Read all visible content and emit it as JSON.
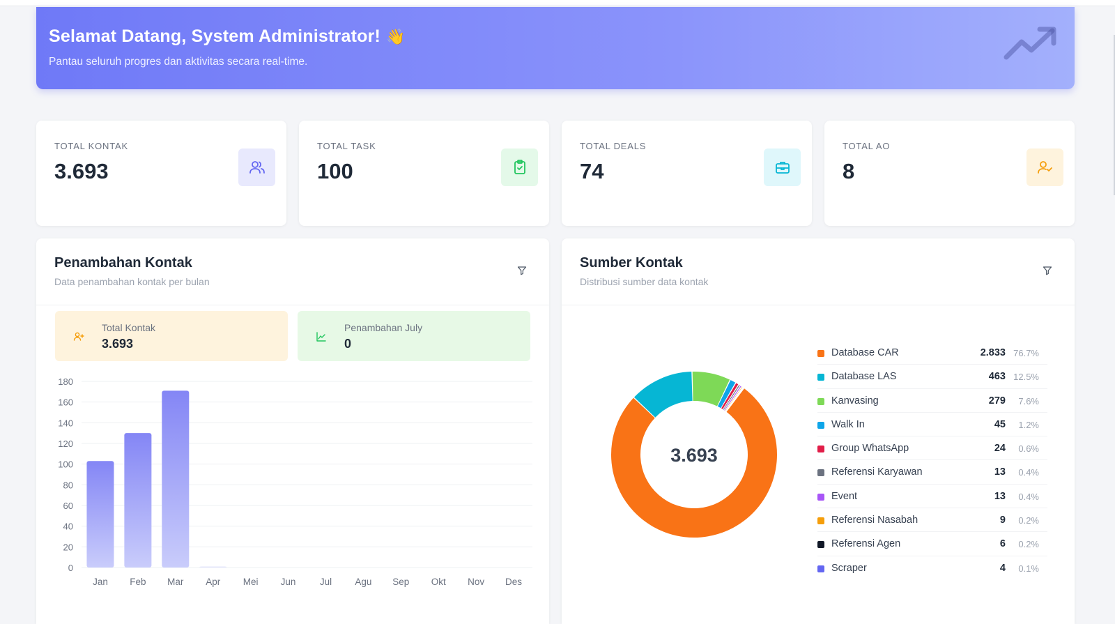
{
  "banner": {
    "title": "Selamat Datang, System Administrator!",
    "emoji": "👋",
    "subtitle": "Pantau seluruh progres dan aktivitas secara real-time.",
    "trend_icon": "trending-up-icon"
  },
  "stats": [
    {
      "label": "TOTAL KONTAK",
      "value": "3.693",
      "icon": "users-icon",
      "color": "#6366f1",
      "bg": "#e8e9fd"
    },
    {
      "label": "TOTAL TASK",
      "value": "100",
      "icon": "clipboard-check-icon",
      "color": "#22c55e",
      "bg": "#e4f9e9"
    },
    {
      "label": "TOTAL DEALS",
      "value": "74",
      "icon": "briefcase-icon",
      "color": "#06b6d4",
      "bg": "#dff7fb"
    },
    {
      "label": "TOTAL AO",
      "value": "8",
      "icon": "user-check-icon",
      "color": "#f59e0b",
      "bg": "#fef3dd"
    }
  ],
  "penambahan": {
    "title": "Penambahan Kontak",
    "subtitle": "Data penambahan kontak per bulan",
    "filter_icon": "filter-icon",
    "mini_total": {
      "label": "Total Kontak",
      "value": "3.693",
      "icon": "user-plus-icon",
      "color": "#f59e0b",
      "bg": "#fef3dd"
    },
    "mini_month": {
      "label": "Penambahan July",
      "value": "0",
      "icon": "line-chart-icon",
      "color": "#22c55e",
      "bg": "#e7f9e6"
    }
  },
  "sumber": {
    "title": "Sumber Kontak",
    "subtitle": "Distribusi sumber data kontak",
    "filter_icon": "filter-icon",
    "center_total": "3.693",
    "legend": [
      {
        "name": "Database CAR",
        "count": "2.833",
        "pct": "76.7%",
        "color": "#f97316"
      },
      {
        "name": "Database LAS",
        "count": "463",
        "pct": "12.5%",
        "color": "#06b6d4"
      },
      {
        "name": "Kanvasing",
        "count": "279",
        "pct": "7.6%",
        "color": "#7ed957"
      },
      {
        "name": "Walk In",
        "count": "45",
        "pct": "1.2%",
        "color": "#0ea5e9"
      },
      {
        "name": "Group WhatsApp",
        "count": "24",
        "pct": "0.6%",
        "color": "#e11d48"
      },
      {
        "name": "Referensi Karyawan",
        "count": "13",
        "pct": "0.4%",
        "color": "#6b7280"
      },
      {
        "name": "Event",
        "count": "13",
        "pct": "0.4%",
        "color": "#a855f7"
      },
      {
        "name": "Referensi Nasabah",
        "count": "9",
        "pct": "0.2%",
        "color": "#f59e0b"
      },
      {
        "name": "Referensi Agen",
        "count": "6",
        "pct": "0.2%",
        "color": "#111827"
      },
      {
        "name": "Scraper",
        "count": "4",
        "pct": "0.1%",
        "color": "#6366f1"
      }
    ]
  },
  "chart_data": [
    {
      "type": "bar",
      "categories": [
        "Jan",
        "Feb",
        "Mar",
        "Apr",
        "Mei",
        "Jun",
        "Jul",
        "Agu",
        "Sep",
        "Okt",
        "Nov",
        "Des"
      ],
      "values": [
        103,
        130,
        171,
        1,
        0,
        0,
        0,
        0,
        0,
        0,
        0,
        0
      ],
      "yticks": [
        0,
        20,
        40,
        60,
        80,
        100,
        120,
        140,
        160,
        180
      ],
      "ylim": [
        0,
        180
      ],
      "grid": true,
      "color": "#8b8ff7"
    },
    {
      "type": "pie",
      "donut": true,
      "labels": [
        "Database CAR",
        "Database LAS",
        "Kanvasing",
        "Walk In",
        "Group WhatsApp",
        "Referensi Karyawan",
        "Event",
        "Referensi Nasabah",
        "Referensi Agen",
        "Scraper"
      ],
      "values": [
        2833,
        463,
        279,
        45,
        24,
        13,
        13,
        9,
        6,
        4
      ],
      "colors": [
        "#f97316",
        "#06b6d4",
        "#7ed957",
        "#0ea5e9",
        "#e11d48",
        "#6b7280",
        "#a855f7",
        "#f59e0b",
        "#111827",
        "#6366f1"
      ]
    }
  ]
}
